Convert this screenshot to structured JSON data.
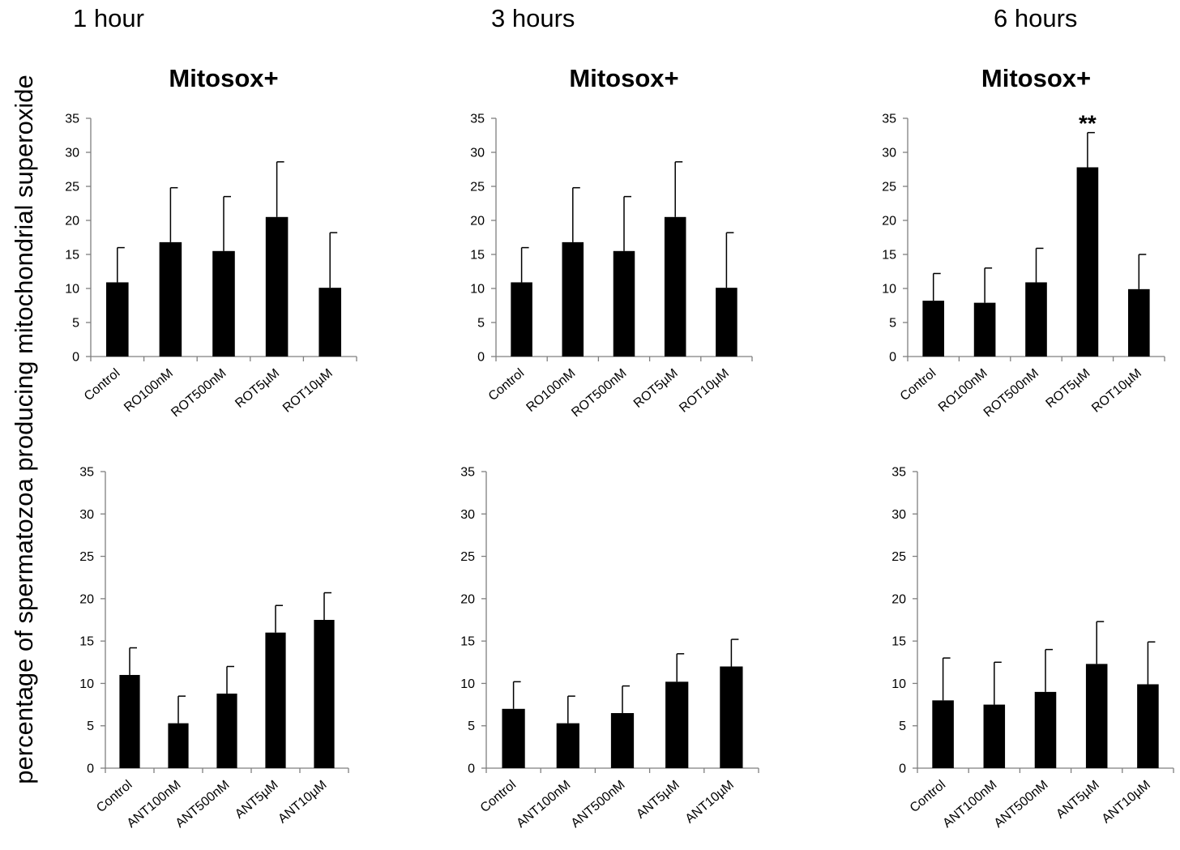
{
  "figure": {
    "ylabel": "percentage of spermatozoa producing mitochondrial superoxide",
    "column_labels": [
      "1 hour",
      "3 hours",
      "6 hours"
    ]
  },
  "chart_data": [
    {
      "type": "bar",
      "title": "Mitosox+",
      "time": "1 hour",
      "categories": [
        "Control",
        "RO100nM",
        "ROT500nM",
        "ROT5µM",
        "ROT10µM"
      ],
      "values": [
        10.9,
        16.8,
        15.5,
        20.5,
        10.1
      ],
      "errors": [
        5.1,
        8.0,
        8.0,
        8.1,
        8.1
      ],
      "ylim": [
        0,
        35
      ],
      "yticks": [
        0,
        5,
        10,
        15,
        20,
        25,
        30,
        35
      ],
      "annotations": [
        "",
        "",
        "",
        "",
        ""
      ]
    },
    {
      "type": "bar",
      "title": "Mitosox+",
      "time": "3 hours",
      "categories": [
        "Control",
        "RO100nM",
        "ROT500nM",
        "ROT5µM",
        "ROT10µM"
      ],
      "values": [
        10.9,
        16.8,
        15.5,
        20.5,
        10.1
      ],
      "errors": [
        5.1,
        8.0,
        8.0,
        8.1,
        8.1
      ],
      "ylim": [
        0,
        35
      ],
      "yticks": [
        0,
        5,
        10,
        15,
        20,
        25,
        30,
        35
      ],
      "annotations": [
        "",
        "",
        "",
        "",
        ""
      ]
    },
    {
      "type": "bar",
      "title": "Mitosox+",
      "time": "6 hours",
      "categories": [
        "Control",
        "RO100nM",
        "ROT500nM",
        "ROT5µM",
        "ROT10µM"
      ],
      "values": [
        8.2,
        7.9,
        10.9,
        27.8,
        9.9
      ],
      "errors": [
        4.0,
        5.1,
        5.0,
        5.1,
        5.1
      ],
      "ylim": [
        0,
        35
      ],
      "yticks": [
        0,
        5,
        10,
        15,
        20,
        25,
        30,
        35
      ],
      "annotations": [
        "",
        "",
        "",
        "**",
        ""
      ]
    },
    {
      "type": "bar",
      "title": "",
      "time": "1 hour",
      "categories": [
        "Control",
        "ANT100nM",
        "ANT500nM",
        "ANT5µM",
        "ANT10µM"
      ],
      "values": [
        11.0,
        5.3,
        8.8,
        16.0,
        17.5
      ],
      "errors": [
        3.2,
        3.2,
        3.2,
        3.2,
        3.2
      ],
      "ylim": [
        0,
        35
      ],
      "yticks": [
        0,
        5,
        10,
        15,
        20,
        25,
        30,
        35
      ],
      "annotations": [
        "",
        "",
        "",
        "",
        ""
      ]
    },
    {
      "type": "bar",
      "title": "",
      "time": "3 hours",
      "categories": [
        "Control",
        "ANT100nM",
        "ANT500nM",
        "ANT5µM",
        "ANT10µM"
      ],
      "values": [
        7.0,
        5.3,
        6.5,
        10.2,
        12.0
      ],
      "errors": [
        3.2,
        3.2,
        3.2,
        3.3,
        3.2
      ],
      "ylim": [
        0,
        35
      ],
      "yticks": [
        0,
        5,
        10,
        15,
        20,
        25,
        30,
        35
      ],
      "annotations": [
        "",
        "",
        "",
        "",
        ""
      ]
    },
    {
      "type": "bar",
      "title": "",
      "time": "6 hours",
      "categories": [
        "Control",
        "ANT100nM",
        "ANT500nM",
        "ANT5µM",
        "ANT10µM"
      ],
      "values": [
        8.0,
        7.5,
        9.0,
        12.3,
        9.9
      ],
      "errors": [
        5.0,
        5.0,
        5.0,
        5.0,
        5.0
      ],
      "ylim": [
        0,
        35
      ],
      "yticks": [
        0,
        5,
        10,
        15,
        20,
        25,
        30,
        35
      ],
      "annotations": [
        "",
        "",
        "",
        "",
        ""
      ]
    }
  ]
}
